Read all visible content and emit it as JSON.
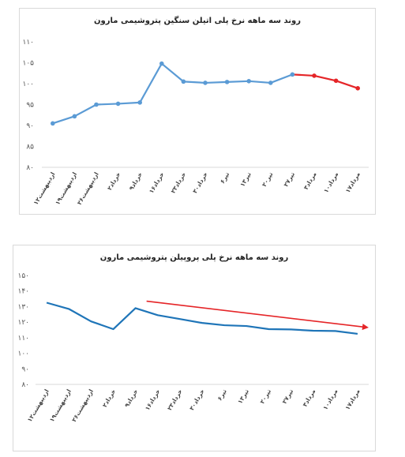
{
  "chart_data": [
    {
      "type": "line",
      "title": "روند سه ماهه نرخ پلی اتیلن سنگین پتروشیمی مارون",
      "categories": [
        "۱۲اردیبهشت",
        "۱۹اردیبهشت",
        "۲۶اردیبهشت",
        "۲خرداد",
        "۹خرداد",
        "۱۶خرداد",
        "۲۳خرداد",
        "۳۰خرداد",
        "۶تیر",
        "۱۳تیر",
        "۲۰تیر",
        "۲۷تیر",
        "۳مرداد",
        "۱۰مرداد",
        "۱۷مرداد"
      ],
      "yticks": [
        "۸۰",
        "۸۵",
        "۹۰",
        "۹۵",
        "۱۰۰",
        "۱۰۵",
        "۱۱۰"
      ],
      "ylim": [
        80,
        110
      ],
      "grid": false,
      "series": [
        {
          "values": [
            90.5,
            92.2,
            95.0,
            95.2,
            95.5,
            104.8,
            100.5,
            100.2,
            100.4,
            100.6,
            100.2,
            102.2,
            101.9,
            100.7,
            98.9
          ],
          "color": "#5b9bd5",
          "highlight_from": 11,
          "highlight_color": "#e52528"
        }
      ]
    },
    {
      "type": "line",
      "title": "روند سه ماهه نرخ پلی پروپیلن پتروشیمی مارون",
      "categories": [
        "۱۲اردیبهشت",
        "۱۹اردیبهشت",
        "۲۶اردیبهشت",
        "۲خرداد",
        "۹خرداد",
        "۱۶خرداد",
        "۲۳خرداد",
        "۳۰خرداد",
        "۶تیر",
        "۱۳تیر",
        "۲۰تیر",
        "۲۷تیر",
        "۳مرداد",
        "۱۰مرداد",
        "۱۷مرداد"
      ],
      "yticks": [
        "۸۰",
        "۹۰",
        "۱۰۰",
        "۱۱۰",
        "۱۲۰",
        "۱۳۰",
        "۱۴۰",
        "۱۵۰"
      ],
      "ylim": [
        80,
        150
      ],
      "grid": false,
      "series": [
        {
          "values": [
            132.5,
            128.5,
            120.5,
            115.5,
            129.0,
            124.5,
            122.0,
            119.5,
            118.0,
            117.5,
            115.5,
            115.3,
            114.5,
            114.3,
            112.5
          ],
          "color": "#1f75b8"
        }
      ],
      "annotation": {
        "type": "arrow",
        "color": "#e52528",
        "from": [
          5,
          133.5
        ],
        "to": [
          15,
          116.5
        ]
      }
    }
  ]
}
